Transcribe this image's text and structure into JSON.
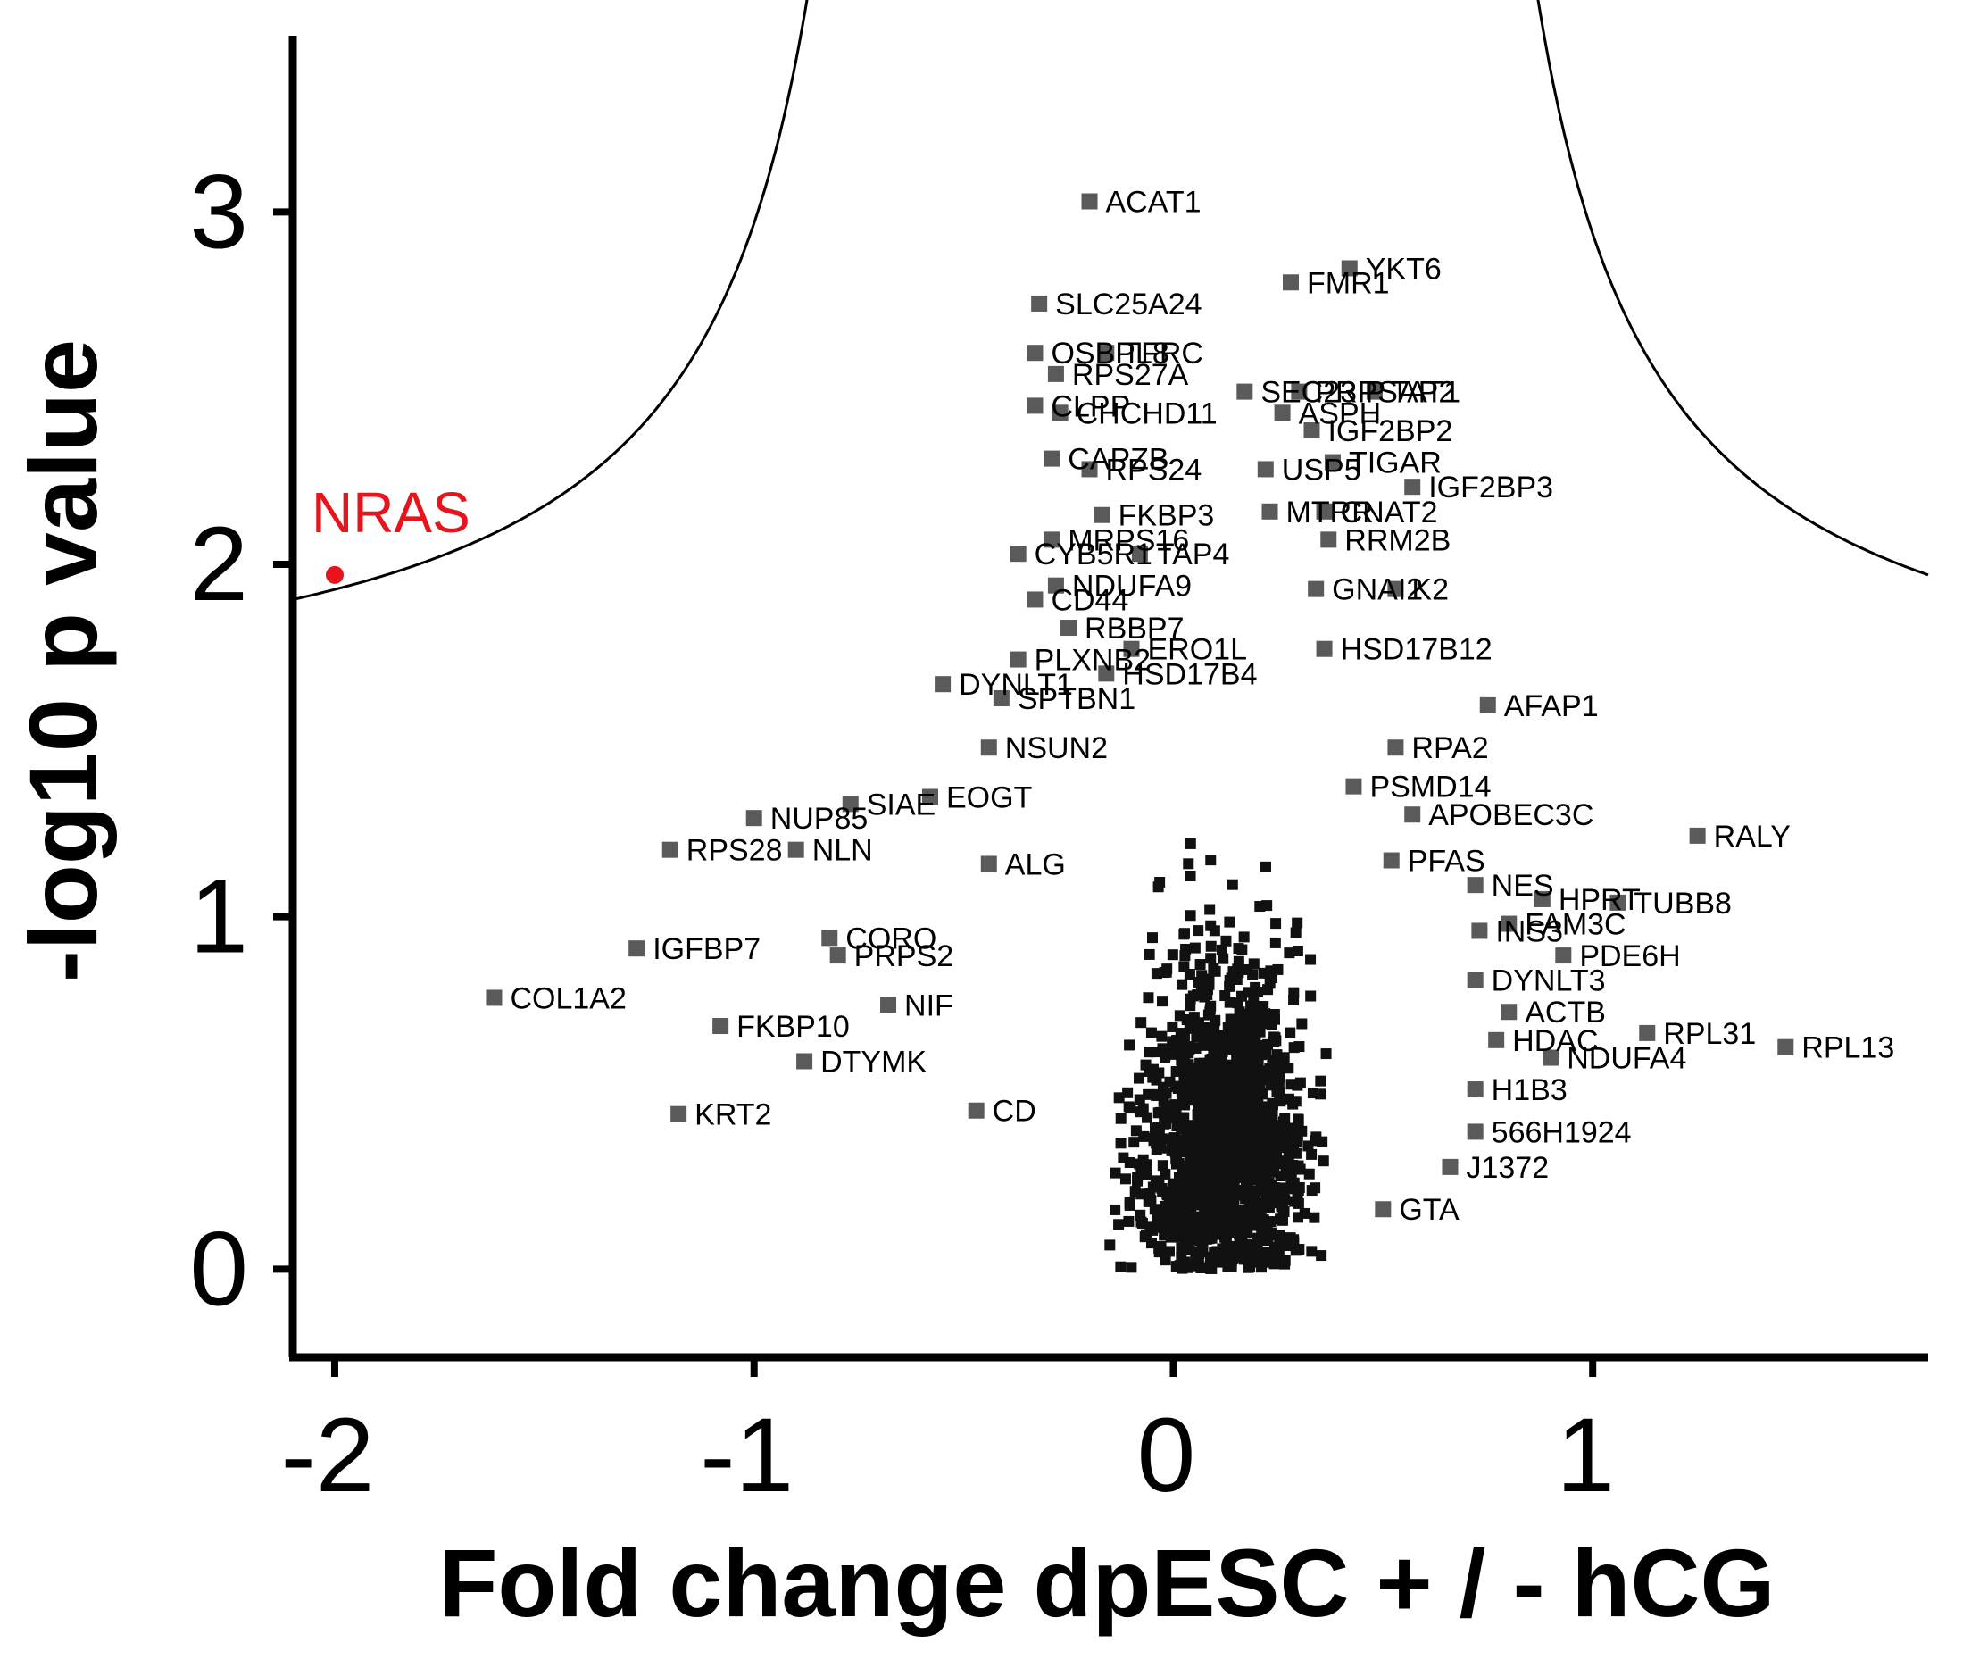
{
  "chart_data": {
    "type": "scatter",
    "title": "",
    "xlabel": "Fold change dpESC + / - hCG",
    "ylabel": "-log10 p value",
    "xlim": [
      -2.1,
      1.8
    ],
    "ylim": [
      -0.25,
      3.5
    ],
    "x_ticks": [
      -2,
      -1,
      0,
      1
    ],
    "x_tick_labels": [
      "-2",
      "-1",
      "0",
      "1"
    ],
    "y_ticks": [
      0,
      1,
      2,
      3
    ],
    "y_tick_labels": [
      "0",
      "1",
      "2",
      "3"
    ],
    "grid": false,
    "colors": {
      "points": "#5a5a5a",
      "highlight": "#e8141c",
      "curve": "#000000",
      "axis": "#000000"
    },
    "threshold_curve": {
      "description": "significance cutoff",
      "asymptote_x": [
        -0.58,
        0.58
      ],
      "y_at_edges": [
        1.9,
        1.97
      ]
    },
    "highlight": {
      "label": "NRAS",
      "x": -2.0,
      "y": 1.97
    },
    "labeled_points": [
      {
        "label": "ACAT1",
        "x": -0.2,
        "y": 3.03
      },
      {
        "label": "YKT6",
        "x": 0.42,
        "y": 2.84
      },
      {
        "label": "FMR1",
        "x": 0.28,
        "y": 2.8
      },
      {
        "label": "SLC25A24",
        "x": -0.32,
        "y": 2.74
      },
      {
        "label": "OSBPL8",
        "x": -0.33,
        "y": 2.6
      },
      {
        "label": "TFRC",
        "x": -0.16,
        "y": 2.6
      },
      {
        "label": "RPS27A",
        "x": -0.28,
        "y": 2.54
      },
      {
        "label": "SEC23IP",
        "x": 0.17,
        "y": 2.49
      },
      {
        "label": "PRPSAP2",
        "x": 0.3,
        "y": 2.49
      },
      {
        "label": "TAT1",
        "x": 0.48,
        "y": 2.49
      },
      {
        "label": "CLPP",
        "x": -0.33,
        "y": 2.45
      },
      {
        "label": "CHCHD11",
        "x": -0.27,
        "y": 2.43
      },
      {
        "label": "ASPH",
        "x": 0.26,
        "y": 2.43
      },
      {
        "label": "IGF2BP2",
        "x": 0.33,
        "y": 2.38
      },
      {
        "label": "CAPZB",
        "x": -0.29,
        "y": 2.3
      },
      {
        "label": "RPS24",
        "x": -0.2,
        "y": 2.27
      },
      {
        "label": "USP5",
        "x": 0.22,
        "y": 2.27
      },
      {
        "label": "TIGAR",
        "x": 0.38,
        "y": 2.29
      },
      {
        "label": "IGF2BP3",
        "x": 0.57,
        "y": 2.22
      },
      {
        "label": "FKBP3",
        "x": -0.17,
        "y": 2.14
      },
      {
        "label": "MTRR",
        "x": 0.23,
        "y": 2.15
      },
      {
        "label": "CNAT2",
        "x": 0.36,
        "y": 2.15
      },
      {
        "label": "MRPS16",
        "x": -0.29,
        "y": 2.07
      },
      {
        "label": "RRM2B",
        "x": 0.37,
        "y": 2.07
      },
      {
        "label": "CYB5R1",
        "x": -0.37,
        "y": 2.03
      },
      {
        "label": "TAP4",
        "x": -0.08,
        "y": 2.03
      },
      {
        "label": "NDUFA9",
        "x": -0.28,
        "y": 1.94
      },
      {
        "label": "GNAI2",
        "x": 0.34,
        "y": 1.93
      },
      {
        "label": "K2",
        "x": 0.53,
        "y": 1.93
      },
      {
        "label": "CD44",
        "x": -0.33,
        "y": 1.9
      },
      {
        "label": "RBBP7",
        "x": -0.25,
        "y": 1.82
      },
      {
        "label": "ERO1L",
        "x": -0.1,
        "y": 1.76
      },
      {
        "label": "HSD17B12",
        "x": 0.36,
        "y": 1.76
      },
      {
        "label": "PLXNB2",
        "x": -0.37,
        "y": 1.73
      },
      {
        "label": "HSD17B4",
        "x": -0.16,
        "y": 1.69
      },
      {
        "label": "DYNLT1",
        "x": -0.55,
        "y": 1.66
      },
      {
        "label": "SPTBN1",
        "x": -0.41,
        "y": 1.62
      },
      {
        "label": "AFAP1",
        "x": 0.75,
        "y": 1.6
      },
      {
        "label": "NSUN2",
        "x": -0.44,
        "y": 1.48
      },
      {
        "label": "RPA2",
        "x": 0.53,
        "y": 1.48
      },
      {
        "label": "EOGT",
        "x": -0.58,
        "y": 1.34
      },
      {
        "label": "SIAE",
        "x": -0.77,
        "y": 1.32
      },
      {
        "label": "NUP85",
        "x": -1.0,
        "y": 1.28
      },
      {
        "label": "PSMD14",
        "x": 0.43,
        "y": 1.37
      },
      {
        "label": "APOBEC3C",
        "x": 0.57,
        "y": 1.29
      },
      {
        "label": "RALY",
        "x": 1.25,
        "y": 1.23
      },
      {
        "label": "RPS28",
        "x": -1.2,
        "y": 1.19
      },
      {
        "label": "NLN",
        "x": -0.9,
        "y": 1.19
      },
      {
        "label": "PFAS",
        "x": 0.52,
        "y": 1.16
      },
      {
        "label": "ALG",
        "x": -0.44,
        "y": 1.15
      },
      {
        "label": "NES",
        "x": 0.72,
        "y": 1.09
      },
      {
        "label": "HPRT",
        "x": 0.88,
        "y": 1.05
      },
      {
        "label": "TUBB8",
        "x": 1.06,
        "y": 1.04
      },
      {
        "label": "FAM3C",
        "x": 0.8,
        "y": 0.98
      },
      {
        "label": "INS3",
        "x": 0.73,
        "y": 0.96
      },
      {
        "label": "IGFBP7",
        "x": -1.28,
        "y": 0.91
      },
      {
        "label": "CORO",
        "x": -0.82,
        "y": 0.94
      },
      {
        "label": "PRPS2",
        "x": -0.8,
        "y": 0.89
      },
      {
        "label": "PDE6H",
        "x": 0.93,
        "y": 0.89
      },
      {
        "label": "DYNLT3",
        "x": 0.72,
        "y": 0.82
      },
      {
        "label": "COL1A2",
        "x": -1.62,
        "y": 0.77
      },
      {
        "label": "NIF",
        "x": -0.68,
        "y": 0.75
      },
      {
        "label": "ACTB",
        "x": 0.8,
        "y": 0.73
      },
      {
        "label": "FKBP10",
        "x": -1.08,
        "y": 0.69
      },
      {
        "label": "RPL31",
        "x": 1.13,
        "y": 0.67
      },
      {
        "label": "RPL13",
        "x": 1.46,
        "y": 0.63
      },
      {
        "label": "NDUFA4",
        "x": 0.9,
        "y": 0.6
      },
      {
        "label": "HDAC",
        "x": 0.77,
        "y": 0.65
      },
      {
        "label": "DTYMK",
        "x": -0.88,
        "y": 0.59
      },
      {
        "label": "KRT2",
        "x": -1.18,
        "y": 0.44
      },
      {
        "label": "H1B3",
        "x": 0.72,
        "y": 0.51
      },
      {
        "label": "566H1924",
        "x": 0.72,
        "y": 0.39
      },
      {
        "label": "J1372",
        "x": 0.66,
        "y": 0.29
      },
      {
        "label": "GTA",
        "x": 0.5,
        "y": 0.17
      },
      {
        "label": "CD",
        "x": -0.47,
        "y": 0.45
      }
    ],
    "unlabeled_points_note": "",
    "unlabeled_points_extra": []
  }
}
